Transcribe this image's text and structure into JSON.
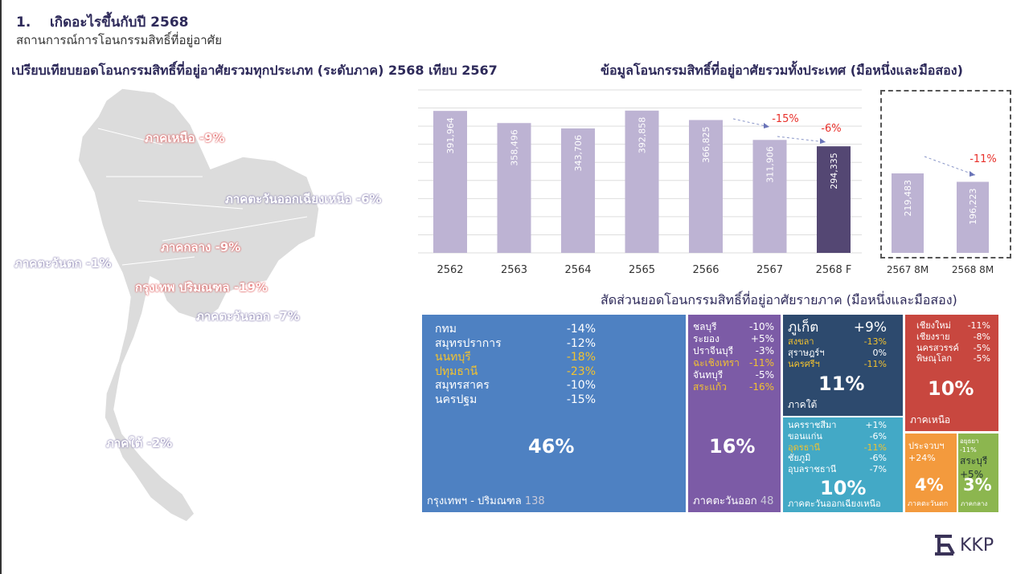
{
  "header": {
    "title": "1.    เกิดอะไรขึ้นกับปี 2568",
    "subtitle": "สถานการณ์การโอนกรรมสิทธิ์ที่อยู่อาศัย"
  },
  "map": {
    "title": "เปรียบเทียบยอดโอนกรรมสิทธิ์ที่อยู่อาศัยรวมทุกประเภท (ระดับภาค) 2568 เทียบ 2567",
    "labels": [
      {
        "text": "ภาคเหนือ -9%",
        "tone": "red"
      },
      {
        "text": "ภาคตะวันออกเฉียงเหนือ -6%",
        "tone": "blue"
      },
      {
        "text": "ภาคกลาง -9%",
        "tone": "red"
      },
      {
        "text": "ภาคตะวันตก -1%",
        "tone": "blue"
      },
      {
        "text": "กรุงเทพ ปริมณฑล -19%",
        "tone": "red"
      },
      {
        "text": "ภาคตะวันออก -7%",
        "tone": "blue"
      },
      {
        "text": "ภาคใต้ -2%",
        "tone": "blue"
      }
    ]
  },
  "chart_data": [
    {
      "type": "bar",
      "title": "ข้อมูลโอนกรรมสิทธิ์ที่อยู่อาศัยรวมทั้งประเทศ (มือหนึ่งและมือสอง)",
      "categories": [
        "2562",
        "2563",
        "2564",
        "2565",
        "2566",
        "2567",
        "2568 F"
      ],
      "values": [
        391964,
        358496,
        343706,
        392858,
        366825,
        311906,
        294335
      ],
      "ylim": [
        0,
        450000
      ],
      "grid": true,
      "annotations": [
        "-15%",
        "-6%"
      ],
      "colors": [
        "#bdb3d3",
        "#bdb3d3",
        "#bdb3d3",
        "#bdb3d3",
        "#bdb3d3",
        "#bdb3d3",
        "#544773"
      ]
    },
    {
      "type": "bar",
      "categories": [
        "2567 8M",
        "2568 8M"
      ],
      "values": [
        219483,
        196223
      ],
      "ylim": [
        0,
        450000
      ],
      "annotations": [
        "-11%"
      ],
      "colors": [
        "#bdb3d3",
        "#bdb3d3"
      ]
    }
  ],
  "treemap": {
    "title": "สัดส่วนยอดโอนกรรมสิทธิ์ที่อยู่อาศัยรายภาค (มือหนึ่งและมือสอง)",
    "bkk": {
      "rows": [
        [
          "กทม",
          "-14%"
        ],
        [
          "สมุทรปราการ",
          "-12%"
        ],
        [
          "นนทบุรี",
          "-18%"
        ],
        [
          "ปทุมธานี",
          "-23%"
        ],
        [
          "สมุทรสาคร",
          "-10%"
        ],
        [
          "นครปฐม",
          "-15%"
        ]
      ],
      "share": "46%",
      "name": "กรุงเทพฯ - ปริมณฑล",
      "count": "138"
    },
    "east": {
      "rows": [
        [
          "ชลบุรี",
          "-10%"
        ],
        [
          "ระยอง",
          "+5%"
        ],
        [
          "ปราจีนบุรี",
          "-3%"
        ],
        [
          "ฉะเชิงเทรา",
          "-11%"
        ],
        [
          "จันทบุรี",
          "-5%"
        ],
        [
          "สระแก้ว",
          "-16%"
        ]
      ],
      "share": "16%",
      "name": "ภาคตะวันออก",
      "count": "48"
    },
    "south": {
      "rows": [
        [
          "ภูเก็ต",
          "+9%"
        ],
        [
          "สงขลา",
          "-13%"
        ],
        [
          "สุราษฎร์ฯ",
          "0%"
        ],
        [
          "นครศรีฯ",
          "-11%"
        ]
      ],
      "share": "11%",
      "name": "ภาคใต้"
    },
    "northeast": {
      "rows": [
        [
          "นครราชสีมา",
          "+1%"
        ],
        [
          "ขอนแก่น",
          "-6%"
        ],
        [
          "อุดรธานี",
          "-11%"
        ],
        [
          "ชัยภูมิ",
          "-6%"
        ],
        [
          "อุบลราชธานี",
          "-7%"
        ]
      ],
      "share": "10%",
      "name": "ภาคตะวันออกเฉียงเหนือ"
    },
    "north": {
      "rows": [
        [
          "เชียงใหม่",
          "-11%"
        ],
        [
          "เชียงราย",
          "-8%"
        ],
        [
          "นครสวรรค์",
          "-5%"
        ],
        [
          "พิษณุโลก",
          "-5%"
        ]
      ],
      "share": "10%",
      "name": "ภาคเหนือ"
    },
    "west": {
      "line1": "ประจวบฯ",
      "line2": "+24%",
      "share": "4%",
      "name": "ภาคตะวันตก"
    },
    "central": {
      "line0": "อยุธยา -11%",
      "line1": "สระบุรี",
      "line2": "+5%",
      "share": "3%",
      "name": "ภาคกลาง"
    }
  },
  "brand": {
    "logo": "KKP"
  }
}
